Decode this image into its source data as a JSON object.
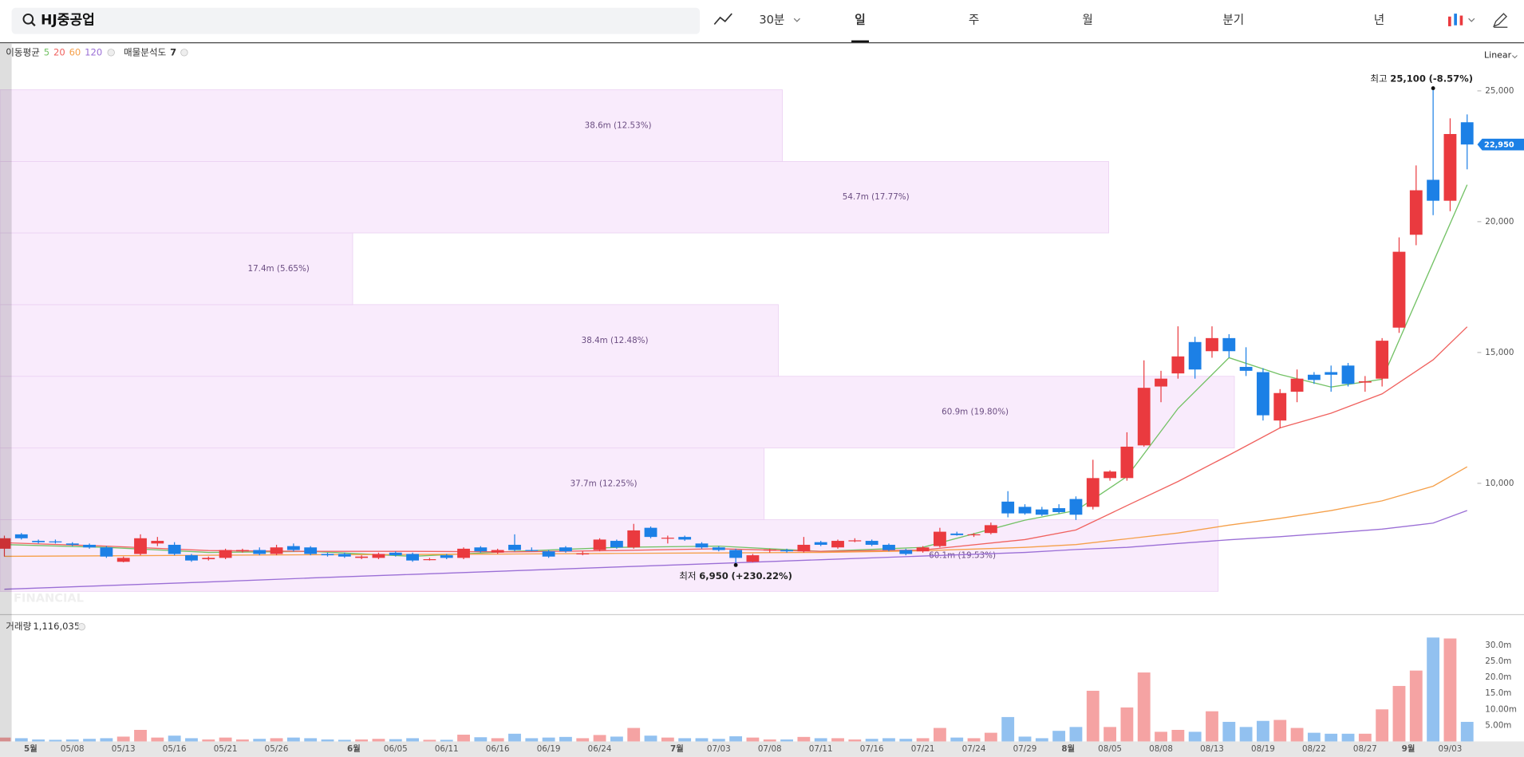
{
  "toolbar": {
    "search": "HJ중공업",
    "interval": "30분",
    "periods": [
      "일",
      "주",
      "월",
      "분기",
      "년"
    ],
    "scale": "Linear"
  },
  "chart_data": [
    {
      "type": "candlestick",
      "indicator_label": "이동평균",
      "categories": [
        null,
        null,
        "5월",
        null,
        "05/08",
        null,
        null,
        "05/13",
        null,
        null,
        "05/16",
        null,
        null,
        "05/21",
        null,
        null,
        "05/26",
        null,
        null,
        null,
        null,
        "6월",
        null,
        "06/05",
        null,
        null,
        "06/11",
        null,
        null,
        "06/16",
        null,
        null,
        "06/19",
        null,
        null,
        "06/24",
        null,
        null,
        null,
        null,
        "7월",
        null,
        "07/03",
        null,
        null,
        "07/08",
        null,
        null,
        "07/11",
        null,
        null,
        "07/16",
        null,
        null,
        "07/21",
        null,
        null,
        "07/24",
        null,
        null,
        "07/29",
        null,
        null,
        "8월",
        null,
        "08/05",
        null,
        null,
        "08/08",
        null,
        null,
        "08/13",
        null,
        null,
        "08/19",
        null,
        null,
        "08/22",
        null,
        null,
        "08/27",
        null,
        null,
        "9월",
        null,
        "09/03",
        null
      ],
      "ohlc": [
        [
          7500,
          8000,
          7200,
          7900
        ],
        [
          8050,
          8100,
          7850,
          7900
        ],
        [
          7800,
          7850,
          7700,
          7750
        ],
        [
          7780,
          7850,
          7700,
          7760
        ],
        [
          7700,
          7750,
          7600,
          7650
        ],
        [
          7650,
          7700,
          7500,
          7550
        ],
        [
          7550,
          7600,
          7150,
          7200
        ],
        [
          7000,
          7200,
          6980,
          7150
        ],
        [
          7300,
          8050,
          7250,
          7900
        ],
        [
          7700,
          7950,
          7600,
          7800
        ],
        [
          7650,
          7750,
          7250,
          7300
        ],
        [
          7250,
          7300,
          7000,
          7050
        ],
        [
          7100,
          7200,
          7050,
          7150
        ],
        [
          7150,
          7500,
          7100,
          7450
        ],
        [
          7400,
          7500,
          7350,
          7450
        ],
        [
          7450,
          7550,
          7250,
          7300
        ],
        [
          7300,
          7650,
          7250,
          7550
        ],
        [
          7600,
          7700,
          7400,
          7450
        ],
        [
          7550,
          7600,
          7250,
          7300
        ],
        [
          7300,
          7350,
          7200,
          7250
        ],
        [
          7300,
          7350,
          7150,
          7200
        ],
        [
          7150,
          7250,
          7100,
          7200
        ],
        [
          7150,
          7350,
          7100,
          7300
        ],
        [
          7350,
          7400,
          7200,
          7250
        ],
        [
          7300,
          7350,
          7000,
          7050
        ],
        [
          7100,
          7150,
          7050,
          7100
        ],
        [
          7250,
          7300,
          7100,
          7150
        ],
        [
          7150,
          7550,
          7100,
          7500
        ],
        [
          7550,
          7600,
          7350,
          7400
        ],
        [
          7350,
          7500,
          7300,
          7450
        ],
        [
          7650,
          8050,
          7400,
          7450
        ],
        [
          7450,
          7550,
          7400,
          7420
        ],
        [
          7400,
          7450,
          7150,
          7200
        ],
        [
          7550,
          7600,
          7350,
          7400
        ],
        [
          7300,
          7400,
          7250,
          7320
        ],
        [
          7450,
          7900,
          7400,
          7850
        ],
        [
          7800,
          7850,
          7500,
          7550
        ],
        [
          7550,
          8450,
          7500,
          8200
        ],
        [
          8300,
          8350,
          7900,
          7950
        ],
        [
          7900,
          8000,
          7700,
          7920
        ],
        [
          7950,
          8000,
          7800,
          7850
        ],
        [
          7700,
          7750,
          7500,
          7550
        ],
        [
          7550,
          7600,
          7400,
          7450
        ],
        [
          7450,
          7500,
          6950,
          7150
        ],
        [
          7000,
          7300,
          6980,
          7250
        ],
        [
          7450,
          7500,
          7350,
          7470
        ],
        [
          7450,
          7500,
          7350,
          7400
        ],
        [
          7400,
          7950,
          7350,
          7650
        ],
        [
          7750,
          7800,
          7600,
          7650
        ],
        [
          7550,
          7850,
          7500,
          7800
        ],
        [
          7800,
          7900,
          7750,
          7820
        ],
        [
          7800,
          7850,
          7600,
          7650
        ],
        [
          7650,
          7700,
          7400,
          7450
        ],
        [
          7450,
          7500,
          7250,
          7300
        ],
        [
          7400,
          7600,
          7350,
          7550
        ],
        [
          7600,
          8300,
          7550,
          8150
        ],
        [
          8080,
          8150,
          8000,
          8020
        ],
        [
          8050,
          8100,
          7950,
          8050
        ],
        [
          8100,
          8500,
          8050,
          8400
        ],
        [
          9300,
          9700,
          8700,
          8850
        ],
        [
          9100,
          9200,
          8800,
          8850
        ],
        [
          9000,
          9100,
          8750,
          8800
        ],
        [
          9050,
          9200,
          8850,
          8900
        ],
        [
          9400,
          9500,
          8600,
          8800
        ],
        [
          9100,
          10900,
          9000,
          10200
        ],
        [
          10200,
          10500,
          10100,
          10450
        ],
        [
          10200,
          11950,
          10100,
          11400
        ],
        [
          11450,
          14700,
          11400,
          13650
        ],
        [
          13700,
          14300,
          13100,
          14000
        ],
        [
          14200,
          16000,
          14000,
          14850
        ],
        [
          15400,
          15600,
          14000,
          14350
        ],
        [
          15050,
          16000,
          14800,
          15550
        ],
        [
          15550,
          15700,
          14800,
          15050
        ],
        [
          14450,
          15200,
          14100,
          14300
        ],
        [
          14250,
          14400,
          12400,
          12600
        ],
        [
          12400,
          13600,
          12100,
          13450
        ],
        [
          13500,
          14350,
          13100,
          14000
        ],
        [
          14150,
          14250,
          13800,
          13950
        ],
        [
          14250,
          14500,
          13500,
          14150
        ],
        [
          14500,
          14600,
          13700,
          13800
        ],
        [
          13850,
          14100,
          13500,
          13900
        ],
        [
          14000,
          15550,
          13700,
          15450
        ],
        [
          15950,
          19400,
          15750,
          18850
        ],
        [
          19500,
          22150,
          19100,
          21200
        ],
        [
          21600,
          25100,
          20250,
          20800
        ],
        [
          20800,
          23950,
          20400,
          23350
        ],
        [
          23800,
          24100,
          22000,
          22950
        ]
      ],
      "up_color": "#ea3a3f",
      "down_color": "#1c80e6",
      "ylim": [
        5000,
        26800
      ],
      "yticks": [
        {
          "value": 10000,
          "label": "10,000"
        },
        {
          "value": 15000,
          "label": "15,000"
        },
        {
          "value": 20000,
          "label": "20,000"
        },
        {
          "value": 25000,
          "label": "25,000"
        }
      ],
      "series": [
        {
          "name": "5",
          "color": "#74c266",
          "x": [
            0,
            6,
            12,
            18,
            24,
            30,
            36,
            42,
            48,
            54,
            60,
            63,
            66,
            69,
            72,
            75,
            78,
            81,
            84,
            86
          ],
          "values": [
            7660,
            7550,
            7360,
            7400,
            7210,
            7400,
            7550,
            7600,
            7400,
            7550,
            8590,
            8960,
            10260,
            12860,
            14800,
            14160,
            13680,
            13980,
            18440,
            21410
          ]
        },
        {
          "name": "20",
          "color": "#f0625f",
          "x": [
            0,
            6,
            12,
            18,
            24,
            30,
            36,
            42,
            48,
            54,
            60,
            63,
            66,
            69,
            72,
            75,
            78,
            81,
            84,
            86
          ],
          "values": [
            7730,
            7600,
            7430,
            7400,
            7400,
            7380,
            7430,
            7500,
            7400,
            7450,
            7850,
            8215,
            9150,
            10070,
            11080,
            12120,
            12680,
            13420,
            14720,
            15980
          ]
        },
        {
          "name": "60",
          "color": "#f5a04a",
          "x": [
            0,
            6,
            12,
            18,
            24,
            30,
            36,
            42,
            48,
            54,
            60,
            63,
            66,
            69,
            72,
            75,
            78,
            81,
            84,
            86
          ],
          "values": [
            7210,
            7230,
            7250,
            7270,
            7280,
            7300,
            7320,
            7340,
            7360,
            7420,
            7550,
            7660,
            7880,
            8100,
            8400,
            8660,
            8960,
            9330,
            9890,
            10630
          ]
        },
        {
          "name": "120",
          "color": "#9b6fd6",
          "x": [
            0,
            6,
            12,
            18,
            24,
            30,
            36,
            42,
            48,
            54,
            60,
            63,
            66,
            69,
            72,
            75,
            78,
            81,
            84,
            86
          ],
          "values": [
            5950,
            6090,
            6230,
            6380,
            6520,
            6660,
            6800,
            6940,
            7080,
            7220,
            7360,
            7470,
            7550,
            7700,
            7840,
            7960,
            8100,
            8250,
            8480,
            8960
          ]
        }
      ],
      "annotations": [
        {
          "text": "최고",
          "index": 84,
          "value": 25100,
          "label": "25,100",
          "change": "(-8.57%)"
        },
        {
          "text": "최저",
          "index": 43,
          "value": 6950,
          "label": "6,950",
          "change": "(+230.22%)"
        }
      ],
      "last_price": {
        "value": 22950,
        "label": "22,950"
      },
      "volume_profile": {
        "name": "매물분석도",
        "count": 7,
        "bands": [
          5870,
          8610,
          11350,
          14090,
          16830,
          19570,
          22300,
          25040
        ],
        "volumes": [
          60.1,
          37.7,
          60.9,
          38.4,
          17.4,
          54.7,
          38.6
        ],
        "value_labels": [
          "60.1m (19.53%)",
          "37.7m (12.25%)",
          "60.9m (19.80%)",
          "38.4m (12.48%)",
          "17.4m (5.65%)",
          "54.7m (17.77%)",
          "38.6m (12.53%)"
        ],
        "color": "#f9ebfc"
      },
      "watermark": "FINANCIAL"
    },
    {
      "type": "bar",
      "title": "거래량",
      "current": "1,116,035",
      "values": [
        1.2,
        1.0,
        0.6,
        0.5,
        0.6,
        0.8,
        1.0,
        1.5,
        3.6,
        1.2,
        1.8,
        1.0,
        0.6,
        1.2,
        0.6,
        0.8,
        1.0,
        1.2,
        1.0,
        0.6,
        0.5,
        0.6,
        0.8,
        0.7,
        1.0,
        0.5,
        0.5,
        2.1,
        1.3,
        1.0,
        2.4,
        1.0,
        1.2,
        1.4,
        1.0,
        2.0,
        1.5,
        4.2,
        1.8,
        1.2,
        1.0,
        1.0,
        0.8,
        1.6,
        1.2,
        0.6,
        0.6,
        1.4,
        1.0,
        1.0,
        0.6,
        0.8,
        1.0,
        0.8,
        1.0,
        4.2,
        1.2,
        1.0,
        2.7,
        7.6,
        1.5,
        1.0,
        3.3,
        4.5,
        15.8,
        4.5,
        10.6,
        21.5,
        3.0,
        3.6,
        3.0,
        9.4,
        6.1,
        4.5,
        6.4,
        6.7,
        4.2,
        2.7,
        2.4,
        2.4,
        2.4,
        10.0,
        17.3,
        22.1,
        32.4,
        32.1,
        6.1
      ],
      "up_color": "#f5a3a3",
      "down_color": "#92c1f0",
      "ylim": [
        0,
        39.4
      ],
      "yticks": [
        {
          "value": 5,
          "label": "5.00m"
        },
        {
          "value": 10,
          "label": "10.00m"
        },
        {
          "value": 15,
          "label": "15.0m"
        },
        {
          "value": 20,
          "label": "20.0m"
        },
        {
          "value": 25,
          "label": "25.0m"
        },
        {
          "value": 30,
          "label": "30.0m"
        }
      ]
    }
  ]
}
